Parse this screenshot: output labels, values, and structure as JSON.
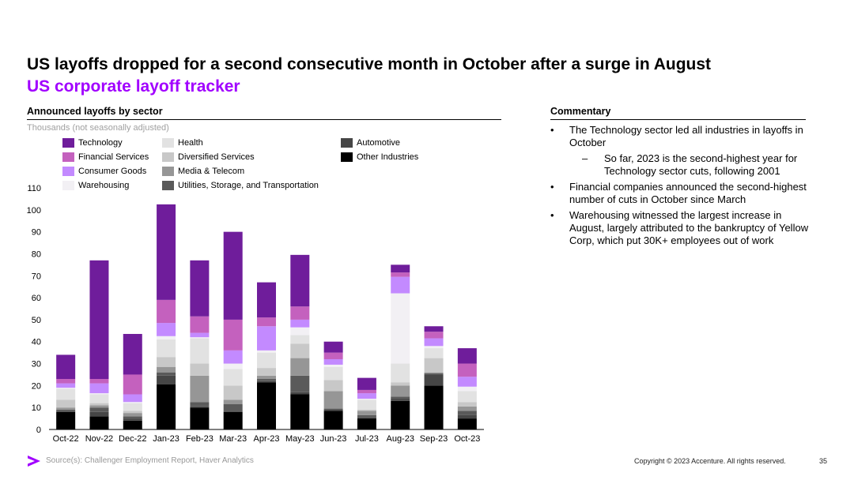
{
  "header": {
    "title": "US layoffs dropped for a second consecutive month in October after a surge in August",
    "subtitle": "US corporate layoff tracker"
  },
  "chart_section": {
    "heading": "Announced layoffs by sector",
    "units": "Thousands (not seasonally adjusted)"
  },
  "commentary": {
    "heading": "Commentary",
    "bullet1": "The Technology sector led all industries in layoffs in October",
    "sub_bullet1": "So far, 2023 is the second-highest year for Technology sector cuts, following 2001",
    "bullet2": "Financial companies announced the second-highest number of cuts in October since March",
    "bullet3": "Warehousing witnessed the largest increase in August, largely attributed to the bankruptcy of Yellow Corp, which put 30K+ employees out of work"
  },
  "footer": {
    "source": "Source(s): Challenger Employment Report, Haver Analytics",
    "copyright": "Copyright © 2023 Accenture. All rights reserved.",
    "page_number": "35"
  },
  "chart_data": {
    "type": "bar",
    "stacked": true,
    "title": "Announced layoffs by sector",
    "ylabel": "Thousands (not seasonally adjusted)",
    "ylim": [
      0,
      110
    ],
    "yticks": [
      0,
      10,
      20,
      30,
      40,
      50,
      60,
      70,
      80,
      90,
      100,
      110
    ],
    "grid": false,
    "legend_position": "top",
    "categories": [
      "Oct-22",
      "Nov-22",
      "Dec-22",
      "Jan-23",
      "Feb-23",
      "Mar-23",
      "Apr-23",
      "May-23",
      "Jun-23",
      "Jul-23",
      "Aug-23",
      "Sep-23",
      "Oct-23"
    ],
    "series": [
      {
        "name": "Other Industries",
        "color": "#000000",
        "values": [
          8.0,
          6.0,
          4.0,
          20.5,
          10.0,
          8.0,
          21.5,
          16.0,
          8.5,
          5.0,
          13.0,
          20.0,
          5.0
        ]
      },
      {
        "name": "Automotive",
        "color": "#464646",
        "values": [
          0.5,
          2.0,
          1.0,
          4.0,
          0.5,
          0.5,
          0.5,
          1.0,
          0.5,
          0.5,
          1.0,
          5.0,
          1.5
        ]
      },
      {
        "name": "Utilities, Storage, and Transportation",
        "color": "#5a5a5a",
        "values": [
          0.5,
          2.0,
          1.0,
          1.5,
          2.0,
          3.0,
          1.0,
          7.5,
          0.5,
          1.0,
          1.0,
          0.5,
          2.0
        ]
      },
      {
        "name": "Media & Telecom",
        "color": "#969696",
        "values": [
          1.0,
          1.0,
          1.5,
          2.5,
          12.0,
          2.0,
          1.5,
          8.0,
          8.0,
          2.0,
          5.0,
          0.5,
          2.0
        ]
      },
      {
        "name": "Diversified Services",
        "color": "#c8c8c8",
        "values": [
          3.5,
          1.0,
          1.0,
          4.5,
          5.5,
          6.5,
          3.5,
          6.5,
          5.0,
          0.5,
          1.5,
          6.5,
          2.0
        ]
      },
      {
        "name": "Health",
        "color": "#e2e2e2",
        "values": [
          5.0,
          4.0,
          3.5,
          8.0,
          11.5,
          7.5,
          7.0,
          4.0,
          6.0,
          4.5,
          8.5,
          4.5,
          5.0
        ]
      },
      {
        "name": "Warehousing",
        "color": "#f2f0f4",
        "values": [
          0.5,
          0.5,
          0.5,
          1.5,
          0.5,
          2.5,
          1.0,
          3.5,
          1.0,
          0.5,
          32.0,
          1.0,
          2.0
        ]
      },
      {
        "name": "Consumer Goods",
        "color": "#c38aff",
        "values": [
          2.0,
          4.5,
          3.5,
          6.0,
          2.0,
          6.0,
          11.0,
          3.5,
          2.5,
          2.5,
          7.5,
          3.5,
          4.5
        ]
      },
      {
        "name": "Financial Services",
        "color": "#c461be",
        "values": [
          2.0,
          2.0,
          9.0,
          10.5,
          7.5,
          14.0,
          4.0,
          6.0,
          3.0,
          1.5,
          2.0,
          3.0,
          6.0
        ]
      },
      {
        "name": "Technology",
        "color": "#6f1d9b",
        "values": [
          11.0,
          54.0,
          18.5,
          43.5,
          25.5,
          40.0,
          16.0,
          23.5,
          5.0,
          5.5,
          3.5,
          2.5,
          7.0
        ]
      }
    ]
  },
  "legend": {
    "columns": [
      [
        "Technology",
        "Financial Services",
        "Consumer Goods",
        "Warehousing"
      ],
      [
        "Health",
        "Diversified Services",
        "Media & Telecom",
        "Utilities, Storage, and Transportation"
      ],
      [
        "Automotive",
        "Other Industries"
      ]
    ]
  },
  "colors": {
    "accent": "#a100ff",
    "technology": "#6f1d9b",
    "financial_services": "#c461be",
    "consumer_goods": "#c38aff",
    "warehousing": "#f2f0f4",
    "health": "#e2e2e2",
    "diversified_services": "#c8c8c8",
    "media_telecom": "#969696",
    "utilities": "#5a5a5a",
    "automotive": "#464646",
    "other_industries": "#000000"
  },
  "icons": {
    "logo": "accenture-greater-than-icon"
  }
}
